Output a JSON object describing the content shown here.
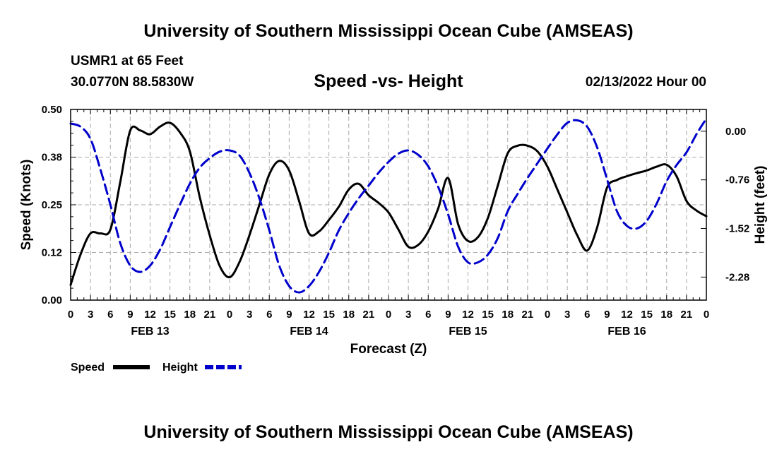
{
  "header": {
    "title": "University of Southern Mississippi Ocean Cube (AMSEAS)",
    "station": "USMR1 at 65 Feet",
    "coords": "30.0770N  88.5830W",
    "subtitle": "Speed -vs- Height",
    "datetime": "02/13/2022 Hour 00"
  },
  "footer": {
    "title": "University of Southern Mississippi Ocean Cube (AMSEAS)"
  },
  "chart_data": {
    "type": "line",
    "xlabel": "Forecast (Z)",
    "ylabel": "Speed (Knots)",
    "y2label": "Height (feet)",
    "xlim": [
      0,
      96
    ],
    "ylim": [
      0,
      0.5
    ],
    "y2lim": [
      -2.64,
      0.34
    ],
    "y_ticks": [
      "0.00",
      "0.12",
      "0.25",
      "0.38",
      "0.50"
    ],
    "y2_ticks": [
      "0.00",
      "-0.76",
      "-1.52",
      "-2.28"
    ],
    "hour_ticks": [
      "0",
      "3",
      "6",
      "9",
      "12",
      "15",
      "18",
      "21",
      "0",
      "3",
      "6",
      "9",
      "12",
      "15",
      "18",
      "21",
      "0",
      "3",
      "6",
      "9",
      "12",
      "15",
      "18",
      "21",
      "0",
      "3",
      "6",
      "9",
      "12",
      "15",
      "18",
      "21",
      "0"
    ],
    "day_labels": [
      "FEB 13",
      "FEB 14",
      "FEB 15",
      "FEB 16"
    ],
    "grid": true,
    "legend": {
      "position": "bottom-left",
      "speed_label": "Speed",
      "height_label": "Height"
    },
    "colors": {
      "speed": "#000000",
      "height": "#0000cc"
    },
    "series": [
      {
        "name": "Speed",
        "axis": "left",
        "style": "solid",
        "x": [
          0,
          1.5,
          3,
          4.5,
          6,
          7.5,
          9,
          10.5,
          12,
          13.5,
          15,
          16.5,
          18,
          19.5,
          21,
          22.5,
          24,
          25.5,
          27,
          28.5,
          30,
          31.5,
          33,
          34.5,
          36,
          37.5,
          39,
          40.5,
          42,
          43.5,
          45,
          46.5,
          48,
          49.5,
          51,
          52.5,
          54,
          55.5,
          57,
          58.5,
          60,
          61.5,
          63,
          64.5,
          66,
          67.5,
          69,
          70.5,
          72,
          73.5,
          75,
          76.5,
          78,
          79.5,
          81,
          82.5,
          84,
          85.5,
          87,
          88.5,
          90,
          91.5,
          93,
          94.5,
          96
        ],
        "values": [
          0.04,
          0.12,
          0.175,
          0.175,
          0.185,
          0.31,
          0.445,
          0.445,
          0.435,
          0.455,
          0.465,
          0.44,
          0.39,
          0.27,
          0.17,
          0.09,
          0.06,
          0.1,
          0.17,
          0.25,
          0.33,
          0.365,
          0.34,
          0.26,
          0.175,
          0.18,
          0.21,
          0.245,
          0.29,
          0.305,
          0.275,
          0.255,
          0.23,
          0.185,
          0.14,
          0.145,
          0.18,
          0.24,
          0.32,
          0.2,
          0.155,
          0.165,
          0.215,
          0.3,
          0.385,
          0.405,
          0.405,
          0.39,
          0.35,
          0.29,
          0.23,
          0.17,
          0.13,
          0.19,
          0.295,
          0.315,
          0.325,
          0.333,
          0.34,
          0.35,
          0.355,
          0.325,
          0.26,
          0.235,
          0.22
        ]
      },
      {
        "name": "Height",
        "axis": "right",
        "style": "dashed",
        "x": [
          0,
          1.5,
          3,
          4.5,
          6,
          7.5,
          9,
          10.5,
          12,
          13.5,
          15,
          16.5,
          18,
          19.5,
          21,
          22.5,
          24,
          25.5,
          27,
          28.5,
          30,
          31.5,
          33,
          34.5,
          36,
          37.5,
          39,
          40.5,
          42,
          43.5,
          45,
          46.5,
          48,
          49.5,
          51,
          52.5,
          54,
          55.5,
          57,
          58.5,
          60,
          61.5,
          63,
          64.5,
          66,
          67.5,
          69,
          70.5,
          72,
          73.5,
          75,
          76.5,
          78,
          79.5,
          81,
          82.5,
          84,
          85.5,
          87,
          88.5,
          90,
          91.5,
          93,
          94.5,
          96
        ],
        "values": [
          0.12,
          0.07,
          -0.12,
          -0.6,
          -1.15,
          -1.75,
          -2.1,
          -2.2,
          -2.1,
          -1.85,
          -1.5,
          -1.15,
          -0.82,
          -0.57,
          -0.42,
          -0.32,
          -0.3,
          -0.38,
          -0.65,
          -1.05,
          -1.55,
          -2.1,
          -2.42,
          -2.52,
          -2.42,
          -2.2,
          -1.9,
          -1.55,
          -1.28,
          -1.05,
          -0.85,
          -0.65,
          -0.48,
          -0.35,
          -0.3,
          -0.37,
          -0.55,
          -0.87,
          -1.3,
          -1.8,
          -2.05,
          -2.05,
          -1.93,
          -1.67,
          -1.25,
          -0.98,
          -0.73,
          -0.5,
          -0.27,
          -0.05,
          0.13,
          0.17,
          0.07,
          -0.25,
          -0.75,
          -1.25,
          -1.48,
          -1.52,
          -1.4,
          -1.13,
          -0.78,
          -0.53,
          -0.33,
          -0.05,
          0.2
        ]
      }
    ]
  }
}
